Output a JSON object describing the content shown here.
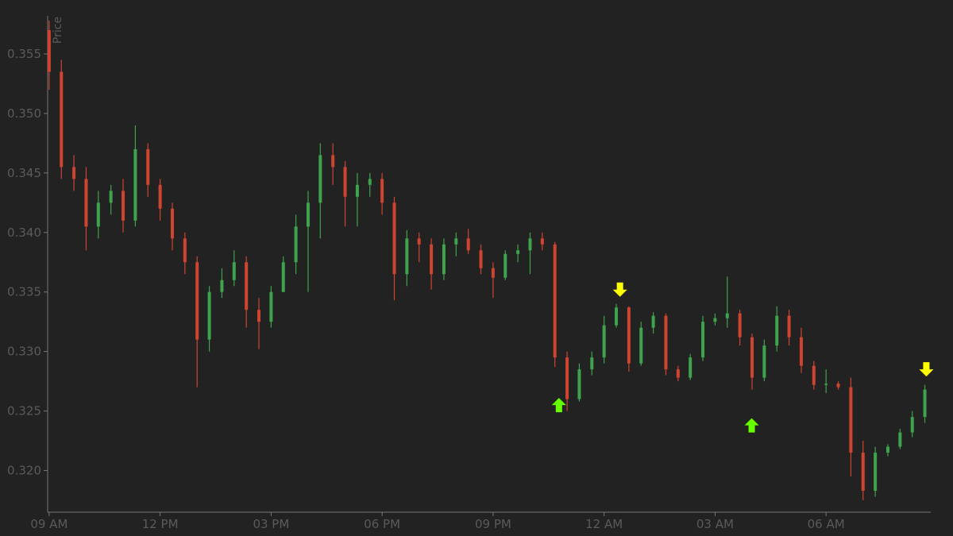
{
  "chart_data": {
    "type": "candlestick",
    "y_label": "Price",
    "background": "#222222",
    "up_color": "#3fa34d",
    "down_color": "#cf4430",
    "xlim": [
      8.96,
      32.83
    ],
    "ylim": [
      0.3165,
      0.3582
    ],
    "xticks": [
      {
        "value": 9,
        "label": "09 AM"
      },
      {
        "value": 12,
        "label": "12 PM"
      },
      {
        "value": 15,
        "label": "03 PM"
      },
      {
        "value": 18,
        "label": "06 PM"
      },
      {
        "value": 21,
        "label": "09 PM"
      },
      {
        "value": 24,
        "label": "12 AM"
      },
      {
        "value": 27,
        "label": "03 AM"
      },
      {
        "value": 30,
        "label": "06 AM"
      }
    ],
    "yticks": [
      {
        "value": 0.32,
        "label": "0.320"
      },
      {
        "value": 0.325,
        "label": "0.325"
      },
      {
        "value": 0.33,
        "label": "0.330"
      },
      {
        "value": 0.335,
        "label": "0.335"
      },
      {
        "value": 0.34,
        "label": "0.340"
      },
      {
        "value": 0.345,
        "label": "0.345"
      },
      {
        "value": 0.35,
        "label": "0.350"
      },
      {
        "value": 0.355,
        "label": "0.355"
      }
    ],
    "x": [
      9.0,
      9.33,
      9.67,
      10.0,
      10.33,
      10.67,
      11.0,
      11.33,
      11.67,
      12.0,
      12.33,
      12.67,
      13.0,
      13.33,
      13.67,
      14.0,
      14.33,
      14.67,
      15.0,
      15.33,
      15.67,
      16.0,
      16.33,
      16.67,
      17.0,
      17.33,
      17.67,
      18.0,
      18.33,
      18.67,
      19.0,
      19.33,
      19.67,
      20.0,
      20.33,
      20.67,
      21.0,
      21.33,
      21.67,
      22.0,
      22.33,
      22.67,
      23.0,
      23.33,
      23.67,
      24.0,
      24.33,
      24.67,
      25.0,
      25.33,
      25.67,
      26.0,
      26.33,
      26.67,
      27.0,
      27.33,
      27.67,
      28.0,
      28.33,
      28.67,
      29.0,
      29.33,
      29.67,
      30.0,
      30.33,
      30.67,
      31.0,
      31.33,
      31.67,
      32.0,
      32.33,
      32.67
    ],
    "open": [
      0.357,
      0.3535,
      0.3455,
      0.3445,
      0.3405,
      0.3425,
      0.3435,
      0.341,
      0.347,
      0.344,
      0.342,
      0.3395,
      0.3375,
      0.331,
      0.335,
      0.336,
      0.3375,
      0.3335,
      0.3325,
      0.335,
      0.3375,
      0.3405,
      0.3425,
      0.3465,
      0.3455,
      0.343,
      0.344,
      0.3445,
      0.3425,
      0.3365,
      0.3395,
      0.339,
      0.3365,
      0.339,
      0.3395,
      0.3385,
      0.337,
      0.3362,
      0.3382,
      0.3385,
      0.3395,
      0.339,
      0.3295,
      0.326,
      0.3285,
      0.3295,
      0.3322,
      0.3337,
      0.329,
      0.332,
      0.333,
      0.3285,
      0.3278,
      0.3295,
      0.3325,
      0.3328,
      0.3332,
      0.3312,
      0.3278,
      0.3305,
      0.333,
      0.3312,
      0.3288,
      0.3272,
      0.3273,
      0.327,
      0.3215,
      0.3183,
      0.3215,
      0.322,
      0.3232,
      0.3245
    ],
    "high": [
      0.3578,
      0.3545,
      0.3465,
      0.3455,
      0.3435,
      0.344,
      0.3445,
      0.349,
      0.3475,
      0.3445,
      0.3425,
      0.34,
      0.338,
      0.3355,
      0.337,
      0.3385,
      0.338,
      0.3345,
      0.3355,
      0.338,
      0.3415,
      0.3435,
      0.3475,
      0.3475,
      0.346,
      0.345,
      0.345,
      0.345,
      0.343,
      0.3402,
      0.34,
      0.3395,
      0.3395,
      0.34,
      0.3403,
      0.339,
      0.3375,
      0.3385,
      0.339,
      0.34,
      0.34,
      0.3392,
      0.33,
      0.329,
      0.33,
      0.333,
      0.334,
      0.3338,
      0.3325,
      0.3333,
      0.3332,
      0.3288,
      0.3298,
      0.333,
      0.3332,
      0.3363,
      0.3335,
      0.3315,
      0.331,
      0.3338,
      0.3335,
      0.332,
      0.3292,
      0.3285,
      0.3275,
      0.3278,
      0.3225,
      0.322,
      0.3222,
      0.3235,
      0.325,
      0.3272
    ],
    "low": [
      0.352,
      0.3445,
      0.3435,
      0.3385,
      0.3395,
      0.3415,
      0.34,
      0.3405,
      0.343,
      0.341,
      0.3385,
      0.3365,
      0.327,
      0.33,
      0.3345,
      0.3355,
      0.332,
      0.3302,
      0.332,
      0.335,
      0.3365,
      0.335,
      0.3395,
      0.344,
      0.3405,
      0.3405,
      0.343,
      0.3415,
      0.3343,
      0.3355,
      0.3375,
      0.3352,
      0.336,
      0.338,
      0.3382,
      0.3365,
      0.3345,
      0.336,
      0.3375,
      0.3365,
      0.3385,
      0.3287,
      0.325,
      0.3258,
      0.328,
      0.329,
      0.332,
      0.3283,
      0.3288,
      0.3315,
      0.328,
      0.3275,
      0.3276,
      0.3292,
      0.3322,
      0.332,
      0.3305,
      0.3268,
      0.3275,
      0.33,
      0.3305,
      0.3282,
      0.3268,
      0.3265,
      0.3268,
      0.3195,
      0.3175,
      0.3178,
      0.3212,
      0.3218,
      0.3228,
      0.324
    ],
    "close": [
      0.3535,
      0.3455,
      0.3445,
      0.3405,
      0.3425,
      0.3435,
      0.341,
      0.347,
      0.344,
      0.342,
      0.3395,
      0.3375,
      0.331,
      0.335,
      0.336,
      0.3375,
      0.3335,
      0.3325,
      0.335,
      0.3375,
      0.3405,
      0.3425,
      0.3465,
      0.3455,
      0.343,
      0.344,
      0.3445,
      0.3425,
      0.3365,
      0.3395,
      0.339,
      0.3365,
      0.339,
      0.3395,
      0.3385,
      0.337,
      0.3362,
      0.3382,
      0.3385,
      0.3395,
      0.339,
      0.3295,
      0.326,
      0.3285,
      0.3295,
      0.3322,
      0.3337,
      0.329,
      0.332,
      0.333,
      0.3285,
      0.3278,
      0.3295,
      0.3325,
      0.3328,
      0.3332,
      0.3312,
      0.3278,
      0.3305,
      0.333,
      0.3312,
      0.3288,
      0.3272,
      0.3273,
      0.327,
      0.3215,
      0.3183,
      0.3215,
      0.322,
      0.3232,
      0.3245,
      0.3268
    ],
    "buy_color": "#66ff00",
    "sell_color": "#ffff00",
    "markers": [
      {
        "x": 22.78,
        "y": 0.3255,
        "kind": "buy"
      },
      {
        "x": 24.43,
        "y": 0.3352,
        "kind": "sell"
      },
      {
        "x": 27.99,
        "y": 0.3238,
        "kind": "buy"
      },
      {
        "x": 32.71,
        "y": 0.3285,
        "kind": "sell"
      }
    ]
  }
}
